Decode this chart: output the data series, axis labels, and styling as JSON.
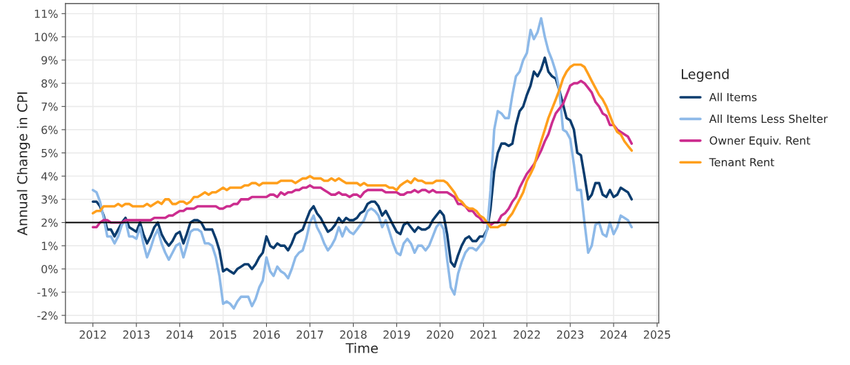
{
  "chart_data": {
    "type": "line",
    "xlabel": "Time",
    "ylabel": "Annual Change in CPI",
    "legend_title": "Legend",
    "legend": "right",
    "grid": true,
    "line_style": "solid",
    "x": [
      "2012-01",
      "2012-02",
      "2012-03",
      "2012-04",
      "2012-05",
      "2012-06",
      "2012-07",
      "2012-08",
      "2012-09",
      "2012-10",
      "2012-11",
      "2012-12",
      "2013-01",
      "2013-02",
      "2013-03",
      "2013-04",
      "2013-05",
      "2013-06",
      "2013-07",
      "2013-08",
      "2013-09",
      "2013-10",
      "2013-11",
      "2013-12",
      "2014-01",
      "2014-02",
      "2014-03",
      "2014-04",
      "2014-05",
      "2014-06",
      "2014-07",
      "2014-08",
      "2014-09",
      "2014-10",
      "2014-11",
      "2014-12",
      "2015-01",
      "2015-02",
      "2015-03",
      "2015-04",
      "2015-05",
      "2015-06",
      "2015-07",
      "2015-08",
      "2015-09",
      "2015-10",
      "2015-11",
      "2015-12",
      "2016-01",
      "2016-02",
      "2016-03",
      "2016-04",
      "2016-05",
      "2016-06",
      "2016-07",
      "2016-08",
      "2016-09",
      "2016-10",
      "2016-11",
      "2016-12",
      "2017-01",
      "2017-02",
      "2017-03",
      "2017-04",
      "2017-05",
      "2017-06",
      "2017-07",
      "2017-08",
      "2017-09",
      "2017-10",
      "2017-11",
      "2017-12",
      "2018-01",
      "2018-02",
      "2018-03",
      "2018-04",
      "2018-05",
      "2018-06",
      "2018-07",
      "2018-08",
      "2018-09",
      "2018-10",
      "2018-11",
      "2018-12",
      "2019-01",
      "2019-02",
      "2019-03",
      "2019-04",
      "2019-05",
      "2019-06",
      "2019-07",
      "2019-08",
      "2019-09",
      "2019-10",
      "2019-11",
      "2019-12",
      "2020-01",
      "2020-02",
      "2020-03",
      "2020-04",
      "2020-05",
      "2020-06",
      "2020-07",
      "2020-08",
      "2020-09",
      "2020-10",
      "2020-11",
      "2020-12",
      "2021-01",
      "2021-02",
      "2021-03",
      "2021-04",
      "2021-05",
      "2021-06",
      "2021-07",
      "2021-08",
      "2021-09",
      "2021-10",
      "2021-11",
      "2021-12",
      "2022-01",
      "2022-02",
      "2022-03",
      "2022-04",
      "2022-05",
      "2022-06",
      "2022-07",
      "2022-08",
      "2022-09",
      "2022-10",
      "2022-11",
      "2022-12",
      "2023-01",
      "2023-02",
      "2023-03",
      "2023-04",
      "2023-05",
      "2023-06",
      "2023-07",
      "2023-08",
      "2023-09",
      "2023-10",
      "2023-11",
      "2023-12",
      "2024-01",
      "2024-02",
      "2024-03",
      "2024-04",
      "2024-05",
      "2024-06"
    ],
    "series": [
      {
        "name": "All Items",
        "color": "#0b3c6e",
        "values": [
          2.9,
          2.9,
          2.7,
          2.3,
          1.7,
          1.7,
          1.4,
          1.7,
          2.0,
          2.2,
          1.8,
          1.7,
          1.6,
          2.0,
          1.5,
          1.1,
          1.4,
          1.8,
          2.0,
          1.5,
          1.2,
          1.0,
          1.2,
          1.5,
          1.6,
          1.1,
          1.5,
          2.0,
          2.1,
          2.1,
          2.0,
          1.7,
          1.7,
          1.7,
          1.3,
          0.8,
          -0.1,
          0.0,
          -0.1,
          -0.2,
          0.0,
          0.1,
          0.2,
          0.2,
          0.0,
          0.2,
          0.5,
          0.7,
          1.4,
          1.0,
          0.9,
          1.1,
          1.0,
          1.0,
          0.8,
          1.1,
          1.5,
          1.6,
          1.7,
          2.1,
          2.5,
          2.7,
          2.4,
          2.2,
          1.9,
          1.6,
          1.7,
          1.9,
          2.2,
          2.0,
          2.2,
          2.1,
          2.1,
          2.2,
          2.4,
          2.5,
          2.8,
          2.9,
          2.9,
          2.7,
          2.3,
          2.5,
          2.2,
          1.9,
          1.6,
          1.5,
          1.9,
          2.0,
          1.8,
          1.6,
          1.8,
          1.7,
          1.7,
          1.8,
          2.1,
          2.3,
          2.5,
          2.3,
          1.5,
          0.3,
          0.1,
          0.6,
          1.0,
          1.3,
          1.4,
          1.2,
          1.2,
          1.4,
          1.4,
          1.7,
          2.6,
          4.2,
          5.0,
          5.4,
          5.4,
          5.3,
          5.4,
          6.2,
          6.8,
          7.0,
          7.5,
          7.9,
          8.5,
          8.3,
          8.6,
          9.1,
          8.5,
          8.3,
          8.2,
          7.7,
          7.1,
          6.5,
          6.4,
          6.0,
          5.0,
          4.9,
          4.0,
          3.0,
          3.2,
          3.7,
          3.7,
          3.2,
          3.1,
          3.4,
          3.1,
          3.2,
          3.5,
          3.4,
          3.3,
          3.0
        ]
      },
      {
        "name": "All Items Less Shelter",
        "color": "#8db9e8",
        "values": [
          3.4,
          3.3,
          2.9,
          2.2,
          1.4,
          1.4,
          1.1,
          1.4,
          1.9,
          2.1,
          1.4,
          1.4,
          1.3,
          1.8,
          1.1,
          0.5,
          0.9,
          1.4,
          1.7,
          1.1,
          0.7,
          0.4,
          0.7,
          1.0,
          1.1,
          0.5,
          1.0,
          1.6,
          1.7,
          1.7,
          1.6,
          1.1,
          1.1,
          1.0,
          0.5,
          -0.3,
          -1.5,
          -1.4,
          -1.5,
          -1.7,
          -1.4,
          -1.2,
          -1.2,
          -1.2,
          -1.6,
          -1.3,
          -0.8,
          -0.5,
          0.5,
          -0.1,
          -0.3,
          0.1,
          -0.1,
          -0.2,
          -0.4,
          0.0,
          0.5,
          0.7,
          0.8,
          1.3,
          2.0,
          2.3,
          1.8,
          1.5,
          1.1,
          0.8,
          1.0,
          1.3,
          1.8,
          1.4,
          1.8,
          1.6,
          1.5,
          1.7,
          1.9,
          2.1,
          2.5,
          2.6,
          2.5,
          2.3,
          1.8,
          2.1,
          1.6,
          1.1,
          0.7,
          0.6,
          1.1,
          1.3,
          1.1,
          0.7,
          1.0,
          1.0,
          0.8,
          1.0,
          1.4,
          1.8,
          2.0,
          1.7,
          0.4,
          -0.8,
          -1.1,
          -0.2,
          0.3,
          0.7,
          0.9,
          0.9,
          0.8,
          1.0,
          1.2,
          1.7,
          3.4,
          6.0,
          6.8,
          6.7,
          6.5,
          6.5,
          7.5,
          8.3,
          8.5,
          9.0,
          9.3,
          10.3,
          9.9,
          10.2,
          10.8,
          10.0,
          9.4,
          9.0,
          8.5,
          7.7,
          6.0,
          5.9,
          5.6,
          4.5,
          3.4,
          3.4,
          2.0,
          0.7,
          1.0,
          1.9,
          2.0,
          1.5,
          1.4,
          2.0,
          1.5,
          1.8,
          2.3,
          2.2,
          2.1,
          1.8
        ]
      },
      {
        "name": "Owner Equiv. Rent",
        "color": "#cc2d8f",
        "values": [
          1.8,
          1.8,
          2.0,
          2.1,
          2.1,
          2.0,
          2.0,
          2.0,
          2.0,
          2.1,
          2.1,
          2.1,
          2.1,
          2.1,
          2.1,
          2.1,
          2.1,
          2.2,
          2.2,
          2.2,
          2.2,
          2.3,
          2.3,
          2.4,
          2.5,
          2.5,
          2.6,
          2.6,
          2.6,
          2.7,
          2.7,
          2.7,
          2.7,
          2.7,
          2.7,
          2.6,
          2.6,
          2.7,
          2.7,
          2.8,
          2.8,
          3.0,
          3.0,
          3.0,
          3.1,
          3.1,
          3.1,
          3.1,
          3.1,
          3.2,
          3.2,
          3.1,
          3.3,
          3.2,
          3.3,
          3.3,
          3.4,
          3.4,
          3.5,
          3.5,
          3.6,
          3.5,
          3.5,
          3.5,
          3.4,
          3.3,
          3.2,
          3.2,
          3.3,
          3.2,
          3.2,
          3.1,
          3.2,
          3.2,
          3.1,
          3.3,
          3.4,
          3.4,
          3.4,
          3.4,
          3.4,
          3.3,
          3.3,
          3.3,
          3.3,
          3.2,
          3.2,
          3.3,
          3.3,
          3.4,
          3.3,
          3.4,
          3.4,
          3.3,
          3.4,
          3.3,
          3.3,
          3.3,
          3.3,
          3.2,
          3.1,
          2.8,
          2.8,
          2.7,
          2.5,
          2.5,
          2.3,
          2.2,
          2.0,
          2.0,
          1.9,
          2.0,
          2.0,
          2.3,
          2.4,
          2.6,
          2.9,
          3.1,
          3.5,
          3.8,
          4.1,
          4.3,
          4.5,
          4.8,
          5.1,
          5.5,
          5.8,
          6.3,
          6.7,
          6.9,
          7.1,
          7.5,
          7.9,
          8.0,
          8.0,
          8.1,
          8.0,
          7.8,
          7.6,
          7.2,
          7.0,
          6.7,
          6.6,
          6.2,
          6.2,
          6.0,
          5.9,
          5.8,
          5.7,
          5.4
        ]
      },
      {
        "name": "Tenant Rent",
        "color": "#ff9f1c",
        "values": [
          2.4,
          2.5,
          2.5,
          2.7,
          2.7,
          2.7,
          2.7,
          2.8,
          2.7,
          2.8,
          2.8,
          2.7,
          2.7,
          2.7,
          2.7,
          2.8,
          2.7,
          2.8,
          2.9,
          2.8,
          3.0,
          3.0,
          2.8,
          2.8,
          2.9,
          2.9,
          2.8,
          2.9,
          3.1,
          3.1,
          3.2,
          3.3,
          3.2,
          3.3,
          3.3,
          3.4,
          3.5,
          3.4,
          3.5,
          3.5,
          3.5,
          3.5,
          3.6,
          3.6,
          3.7,
          3.7,
          3.6,
          3.7,
          3.7,
          3.7,
          3.7,
          3.7,
          3.8,
          3.8,
          3.8,
          3.8,
          3.7,
          3.8,
          3.9,
          3.9,
          4.0,
          3.9,
          3.9,
          3.9,
          3.8,
          3.8,
          3.9,
          3.8,
          3.9,
          3.8,
          3.7,
          3.7,
          3.7,
          3.7,
          3.6,
          3.7,
          3.6,
          3.6,
          3.6,
          3.6,
          3.6,
          3.6,
          3.5,
          3.5,
          3.4,
          3.6,
          3.7,
          3.8,
          3.7,
          3.9,
          3.8,
          3.8,
          3.7,
          3.7,
          3.7,
          3.8,
          3.8,
          3.8,
          3.7,
          3.5,
          3.3,
          3.0,
          2.9,
          2.7,
          2.6,
          2.6,
          2.5,
          2.3,
          2.2,
          2.0,
          1.8,
          1.8,
          1.8,
          1.9,
          1.9,
          2.2,
          2.4,
          2.7,
          3.0,
          3.3,
          3.8,
          4.1,
          4.4,
          5.0,
          5.5,
          6.0,
          6.5,
          6.9,
          7.3,
          7.7,
          8.2,
          8.5,
          8.7,
          8.8,
          8.8,
          8.8,
          8.7,
          8.4,
          8.1,
          7.8,
          7.5,
          7.3,
          7.0,
          6.6,
          6.2,
          5.9,
          5.8,
          5.5,
          5.3,
          5.1
        ]
      }
    ],
    "ref_lines": [
      {
        "axis": "y",
        "value": 2,
        "color": "#000000",
        "line_style": "solid"
      }
    ],
    "xlim": [
      "2011-05-15",
      "2025-01-15"
    ],
    "xticks": [
      "2012",
      "2013",
      "2014",
      "2015",
      "2016",
      "2017",
      "2018",
      "2019",
      "2020",
      "2021",
      "2022",
      "2023",
      "2024",
      "2025"
    ],
    "ylim": [
      -2.33,
      11.43
    ],
    "yticks": [
      {
        "value": -2,
        "label": "-2%"
      },
      {
        "value": -1,
        "label": "-1%"
      },
      {
        "value": 0,
        "label": "0%"
      },
      {
        "value": 1,
        "label": "1%"
      },
      {
        "value": 2,
        "label": "2%"
      },
      {
        "value": 3,
        "label": "3%"
      },
      {
        "value": 4,
        "label": "4%"
      },
      {
        "value": 5,
        "label": "5%"
      },
      {
        "value": 6,
        "label": "6%"
      },
      {
        "value": 7,
        "label": "7%"
      },
      {
        "value": 8,
        "label": "8%"
      },
      {
        "value": 9,
        "label": "9%"
      },
      {
        "value": 10,
        "label": "10%"
      },
      {
        "value": 11,
        "label": "11%"
      }
    ]
  }
}
